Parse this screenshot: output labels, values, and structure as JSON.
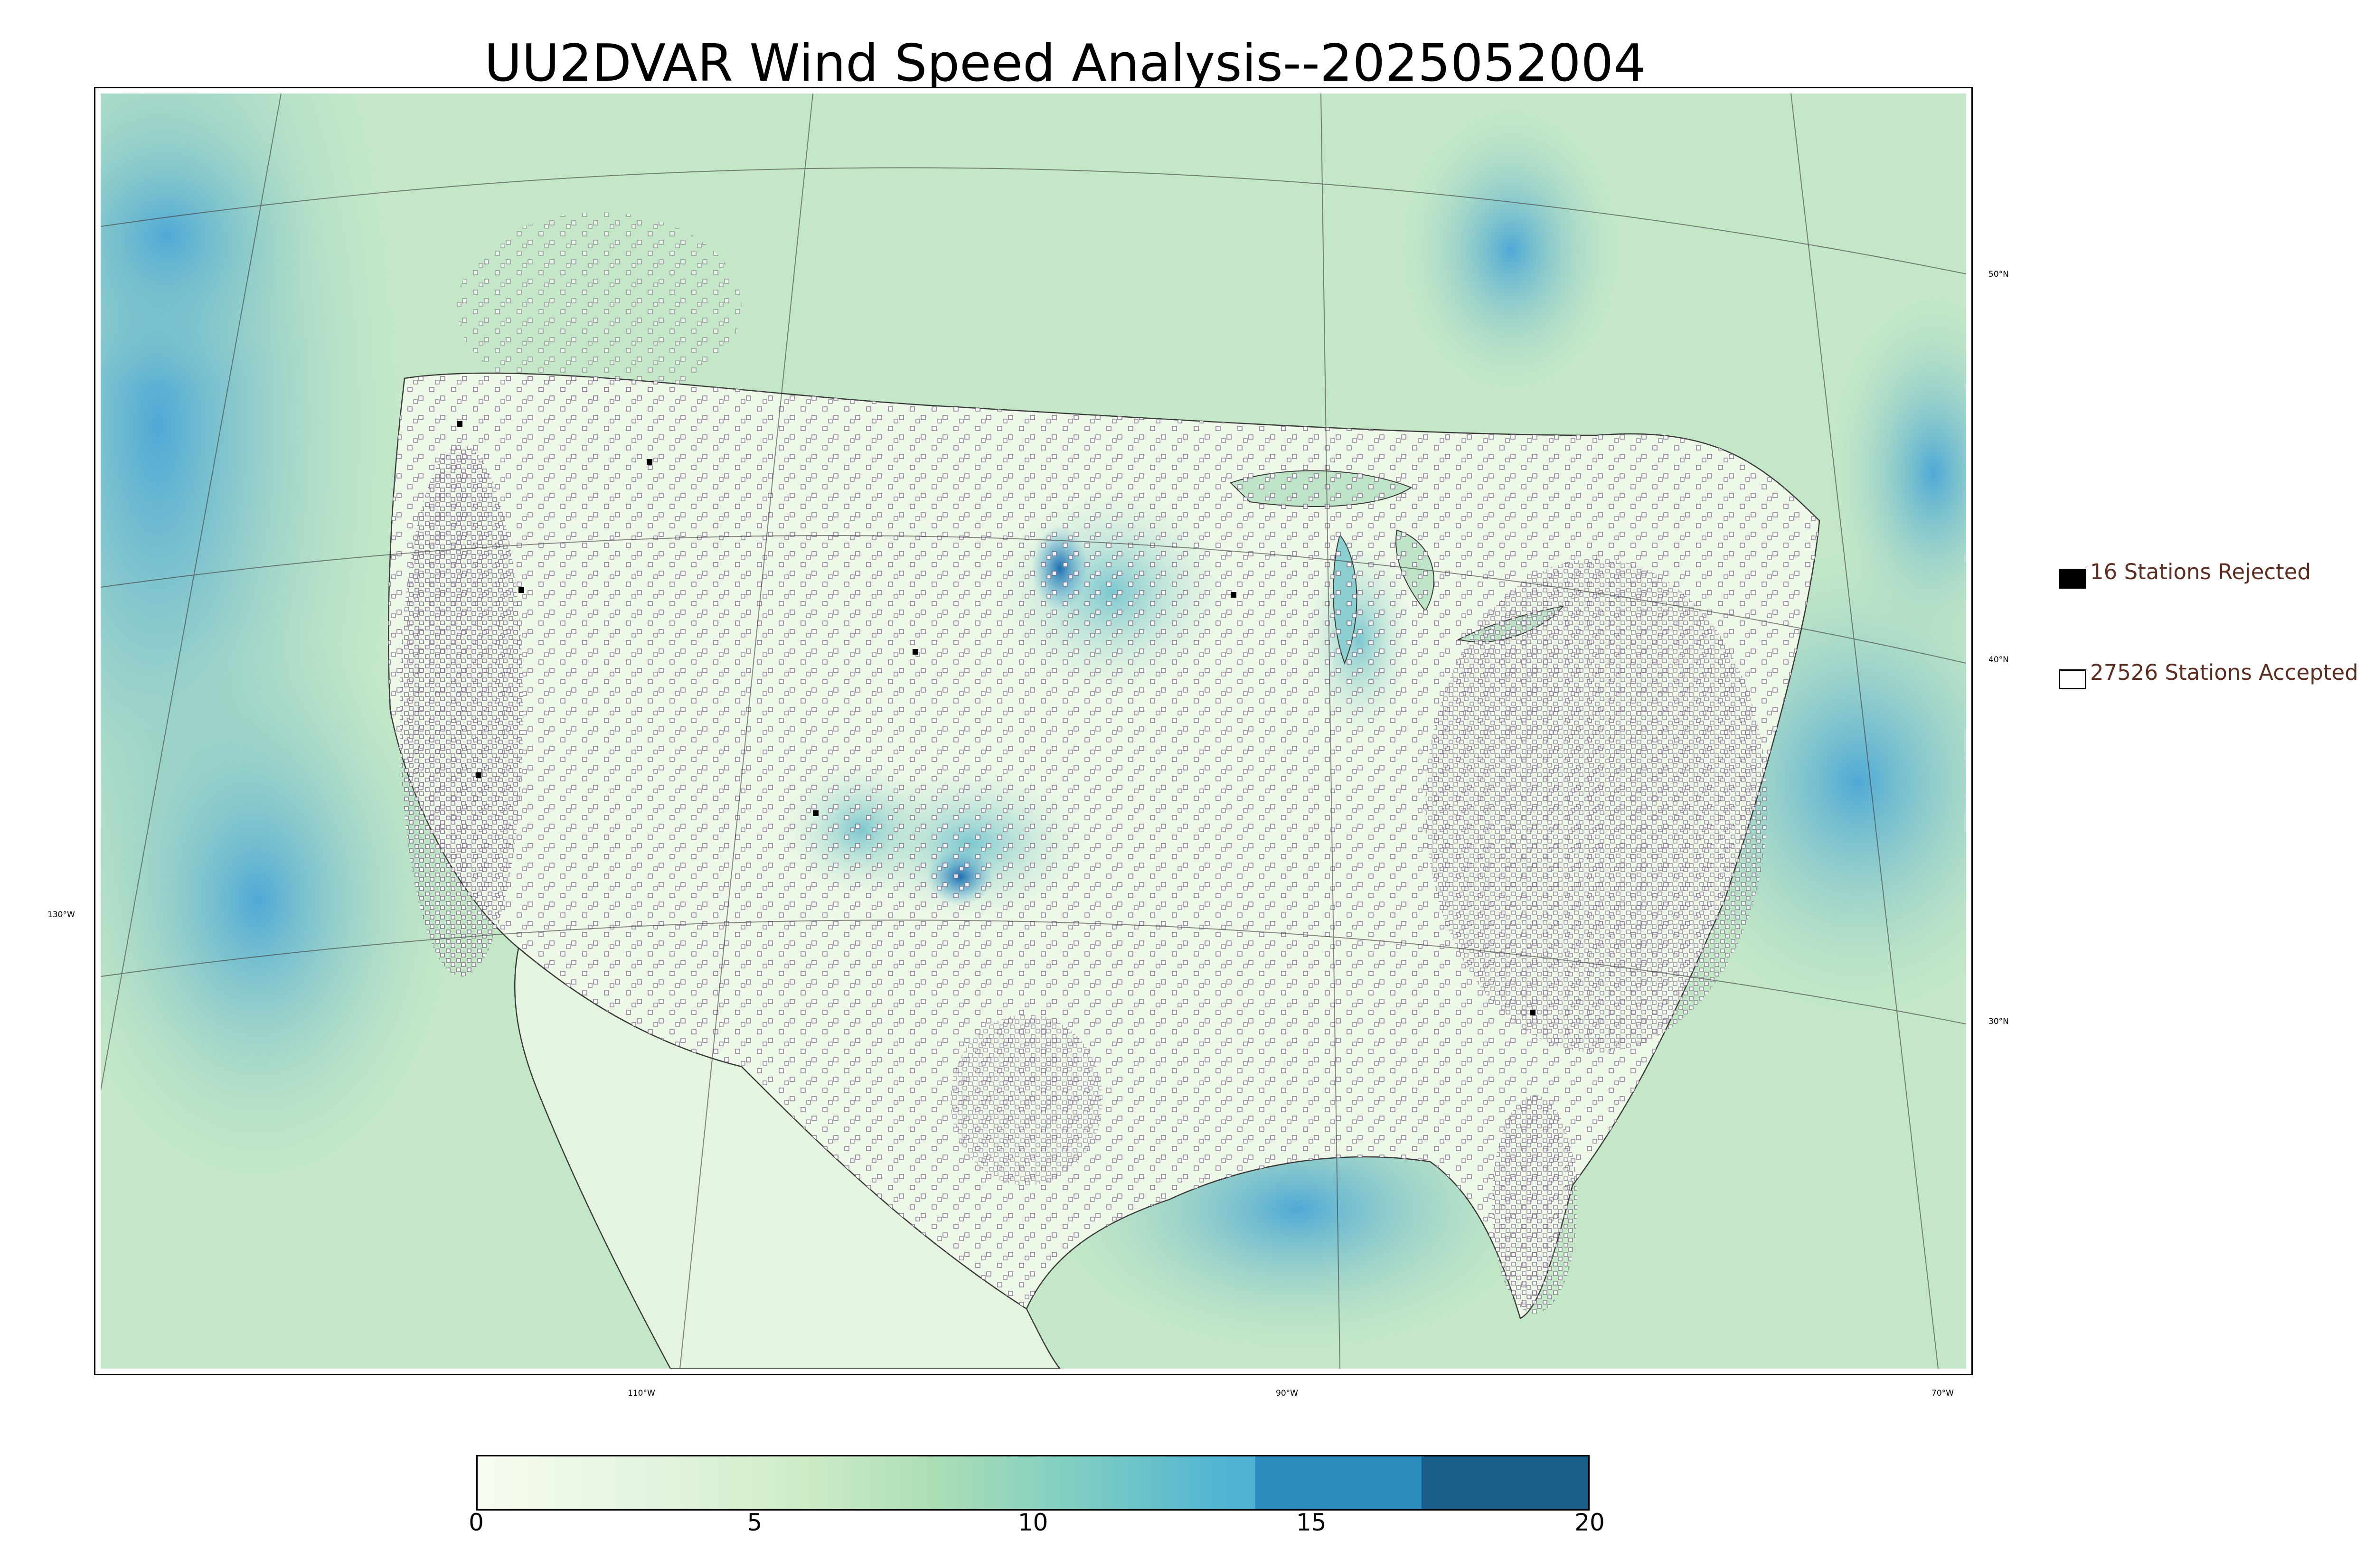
{
  "title": "UU2DVAR Wind Speed Analysis--2025052004",
  "axes": {
    "longitude_labels": [
      "130°W",
      "110°W",
      "90°W",
      "70°W"
    ],
    "latitude_labels": [
      "50°N",
      "40°N",
      "30°N"
    ]
  },
  "legend": {
    "rejected": {
      "label": "16 Stations Rejected",
      "color": "#000000"
    },
    "accepted": {
      "label": "27526 Stations Accepted",
      "color": "#ffffff"
    }
  },
  "colorbar": {
    "min": 0,
    "max": 20,
    "ticks": [
      "0",
      "5",
      "10",
      "15",
      "20"
    ],
    "colors": [
      "#f7fcf0",
      "#e0f3db",
      "#ccebc5",
      "#a8ddb5",
      "#7bccc4",
      "#4eb3d3",
      "#2b8cbe",
      "#1a5c8a"
    ]
  },
  "colors": {
    "land": "#eef8e9",
    "land_mid": "#d3eed0",
    "ocean": "#a9dcc0",
    "ocean_strong": "#5bb3d6",
    "wind_max": "#1f6fb0",
    "station_accepted_edge": "#7a6a82"
  }
}
